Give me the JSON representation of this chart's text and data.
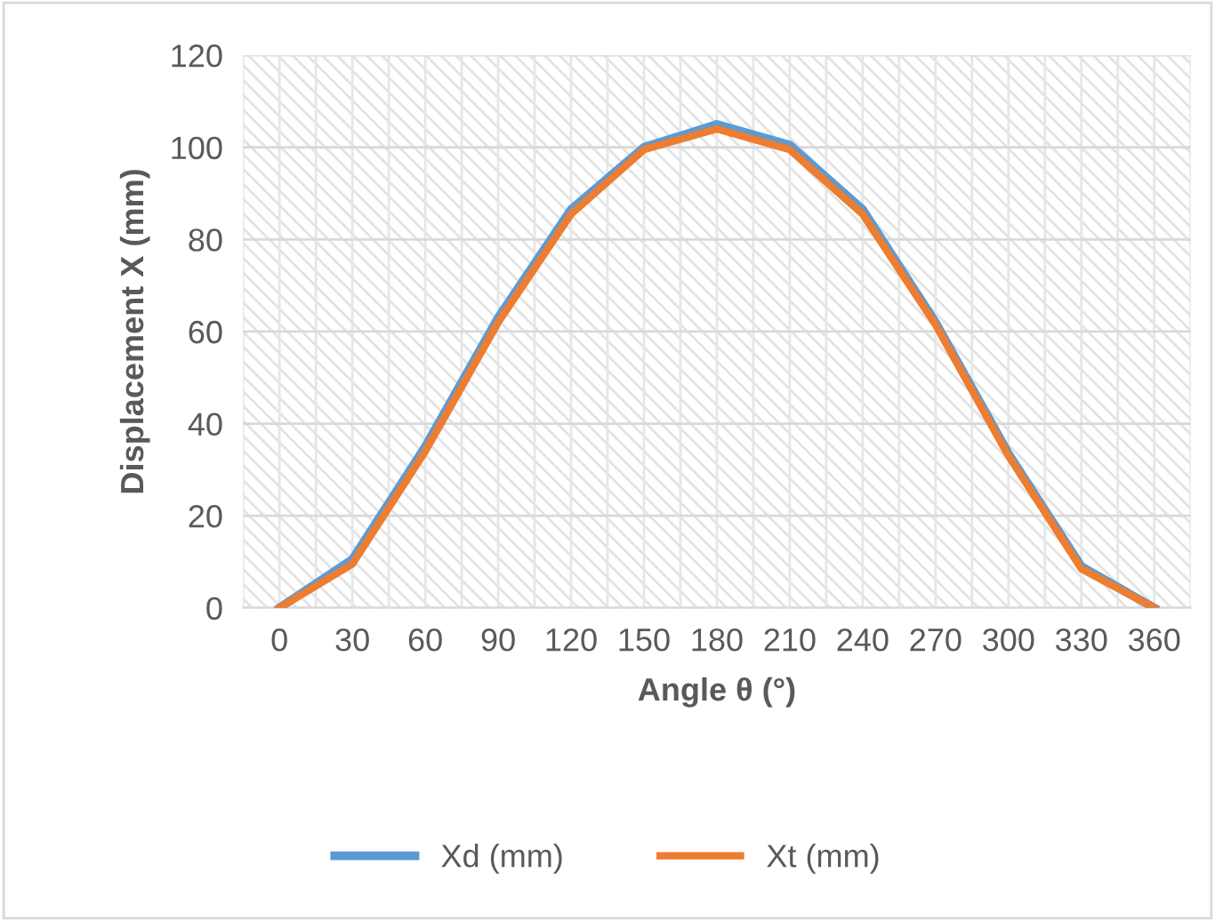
{
  "chart_data": {
    "type": "line",
    "xlabel": "Angle θ (°)",
    "ylabel": "Displacement X (mm)",
    "categories": [
      "0",
      "30",
      "60",
      "90",
      "120",
      "150",
      "180",
      "210",
      "240",
      "270",
      "300",
      "330",
      "360"
    ],
    "series": [
      {
        "name": "Xd (mm)",
        "color": "#5b9bd5",
        "values": [
          0,
          10.5,
          35,
          63,
          86.5,
          100,
          105,
          100.5,
          86.5,
          62,
          33.5,
          9,
          0
        ]
      },
      {
        "name": "Xt (mm)",
        "color": "#ed7d31",
        "values": [
          0,
          9.5,
          34,
          62,
          85.5,
          99.5,
          104,
          99.5,
          85.5,
          61.5,
          33,
          8.5,
          0
        ]
      }
    ],
    "ylim": [
      0,
      120
    ],
    "yticks": [
      0,
      20,
      40,
      60,
      80,
      100,
      120
    ],
    "grid": true,
    "legend": "bottom",
    "marker": "none",
    "line_style": "solid"
  }
}
